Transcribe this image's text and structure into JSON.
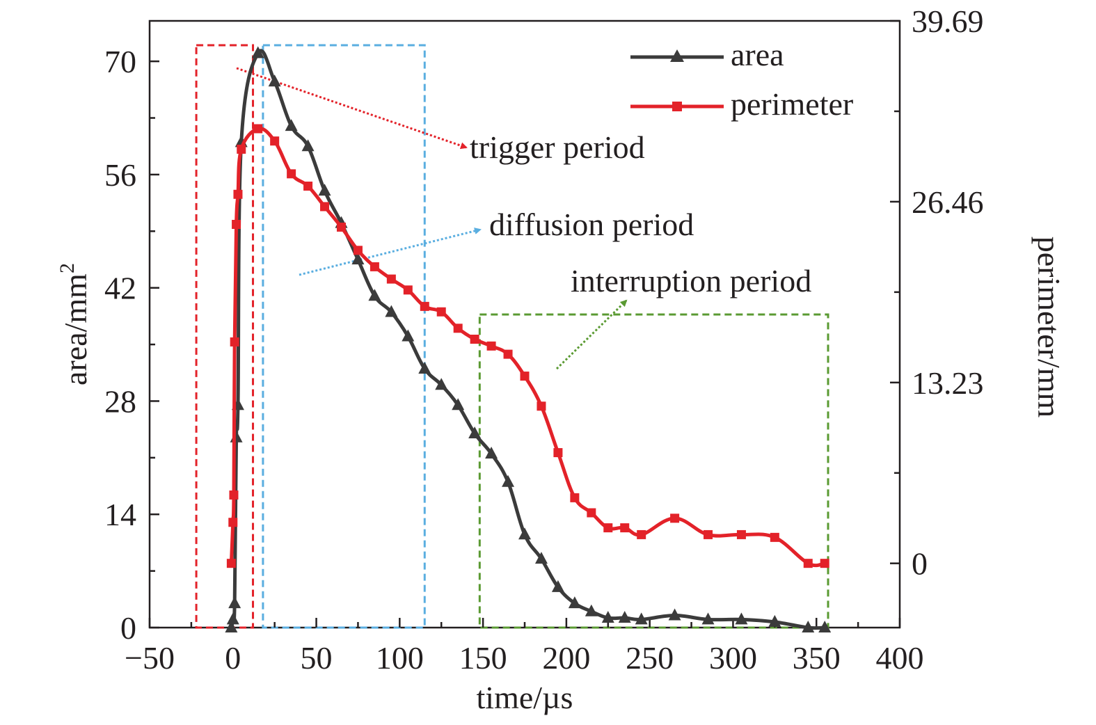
{
  "chart_data": {
    "type": "line",
    "title": "",
    "xlabel": "time/µs",
    "ylabel": "area/mm",
    "ylabel_sup": "2",
    "y2label": "perimeter/mm",
    "xlim": [
      -50,
      400
    ],
    "ylim": [
      0,
      75
    ],
    "y2lim": [
      -4.7,
      39.69
    ],
    "x_ticks": [
      -50,
      0,
      50,
      100,
      150,
      200,
      250,
      300,
      350,
      400
    ],
    "x_tick_labels": [
      "−50",
      "0",
      "50",
      "100",
      "150",
      "200",
      "250",
      "300",
      "350",
      "400"
    ],
    "y_ticks": [
      0,
      14,
      28,
      42,
      56,
      70
    ],
    "y_tick_labels": [
      "0",
      "14",
      "28",
      "42",
      "56",
      "70"
    ],
    "y2_ticks": [
      0,
      13.23,
      26.46,
      39.69
    ],
    "y2_tick_labels": [
      "0",
      "13.23",
      "26.46",
      "39.69"
    ],
    "grid": false,
    "legend_position": "top-right",
    "series": [
      {
        "name": "area",
        "axis": "left",
        "color": "#3b3b3b",
        "marker": "triangle",
        "x": [
          -1,
          0,
          1,
          2,
          3,
          5,
          15,
          25,
          35,
          45,
          55,
          65,
          75,
          85,
          95,
          105,
          115,
          125,
          135,
          145,
          155,
          165,
          175,
          185,
          195,
          205,
          215,
          225,
          235,
          245,
          265,
          285,
          305,
          325,
          345,
          355
        ],
        "y": [
          0,
          1,
          3,
          23.5,
          27.5,
          60,
          71,
          67.5,
          62,
          59.5,
          54,
          50,
          45.5,
          41,
          39,
          36,
          32,
          30,
          27.5,
          24,
          21.5,
          18,
          11.5,
          8.5,
          5,
          3,
          2,
          1.2,
          1.2,
          1,
          1.5,
          1,
          1,
          0.7,
          0,
          0
        ]
      },
      {
        "name": "perimeter",
        "axis": "right",
        "color": "#e32229",
        "marker": "square",
        "x": [
          -1,
          0,
          0.5,
          1,
          2,
          3,
          5,
          15,
          25,
          35,
          45,
          55,
          65,
          75,
          85,
          95,
          105,
          115,
          125,
          135,
          145,
          155,
          165,
          175,
          185,
          195,
          205,
          215,
          225,
          235,
          245,
          265,
          285,
          305,
          325,
          345,
          355
        ],
        "y": [
          0,
          3,
          5,
          16.2,
          24.8,
          27,
          30.3,
          31.8,
          30.9,
          28.5,
          27.6,
          26.1,
          24.6,
          22.9,
          21.7,
          20.8,
          20,
          18.8,
          18.4,
          17.2,
          16.4,
          15.9,
          15.3,
          13.7,
          11.5,
          8.1,
          4.8,
          3.7,
          2.6,
          2.6,
          2.1,
          3.3,
          2.1,
          2.1,
          1.9,
          0,
          0
        ]
      }
    ],
    "annotations": [
      {
        "text": "trigger period",
        "color": "#e32229",
        "x_range": [
          -22,
          12
        ]
      },
      {
        "text": "diffusion period",
        "color": "#5aaee0",
        "x_range": [
          18,
          115
        ]
      },
      {
        "text": "interruption period",
        "color": "#5a9a32",
        "x_range": [
          148,
          357
        ]
      }
    ]
  }
}
